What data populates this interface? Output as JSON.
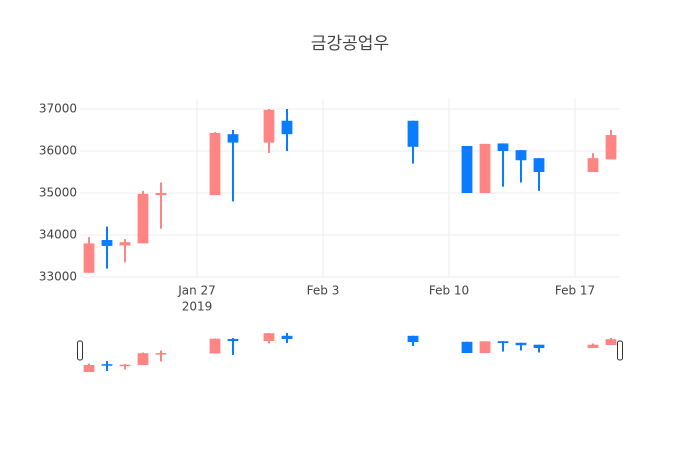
{
  "chart_data": {
    "type": "candlestick",
    "title": "금강공업우",
    "x": [
      "2019-01-21",
      "2019-01-22",
      "2019-01-23",
      "2019-01-24",
      "2019-01-25",
      "2019-01-28",
      "2019-01-29",
      "2019-01-31",
      "2019-02-01",
      "2019-02-08",
      "2019-02-11",
      "2019-02-12",
      "2019-02-13",
      "2019-02-14",
      "2019-02-15",
      "2019-02-18",
      "2019-02-19"
    ],
    "open": [
      33100,
      33880,
      33750,
      33800,
      34950,
      34950,
      36400,
      36200,
      36720,
      36720,
      36120,
      35000,
      36180,
      36020,
      35830,
      35500,
      35800
    ],
    "high": [
      33950,
      34200,
      33900,
      35050,
      35250,
      36450,
      36500,
      37000,
      37000,
      36720,
      36120,
      36170,
      36180,
      36020,
      35830,
      35950,
      36500
    ],
    "low": [
      33100,
      33200,
      33350,
      33800,
      34150,
      34950,
      34800,
      35950,
      36000,
      35700,
      35000,
      35000,
      35150,
      35250,
      35050,
      35500,
      35800
    ],
    "close": [
      33800,
      33740,
      33830,
      34980,
      35000,
      36430,
      36200,
      36980,
      36400,
      36100,
      35000,
      36170,
      36000,
      35780,
      35500,
      35830,
      36380
    ],
    "increasing_color": "#ff8585",
    "decreasing_color": "#0a7cff",
    "xlim": [
      "2019-01-20T12:00",
      "2019-02-19T12:00"
    ],
    "xticks": [
      {
        "value": "2019-01-27",
        "label": "Jan 27"
      },
      {
        "value": "2019-02-03",
        "label": "Feb 3"
      },
      {
        "value": "2019-02-10",
        "label": "Feb 10"
      },
      {
        "value": "2019-02-17",
        "label": "Feb 17"
      }
    ],
    "x_axis_year": "2019",
    "ylim": [
      33000,
      37000
    ],
    "yticks": [
      33000,
      34000,
      35000,
      36000,
      37000
    ],
    "grid": true,
    "range_slider": true
  }
}
